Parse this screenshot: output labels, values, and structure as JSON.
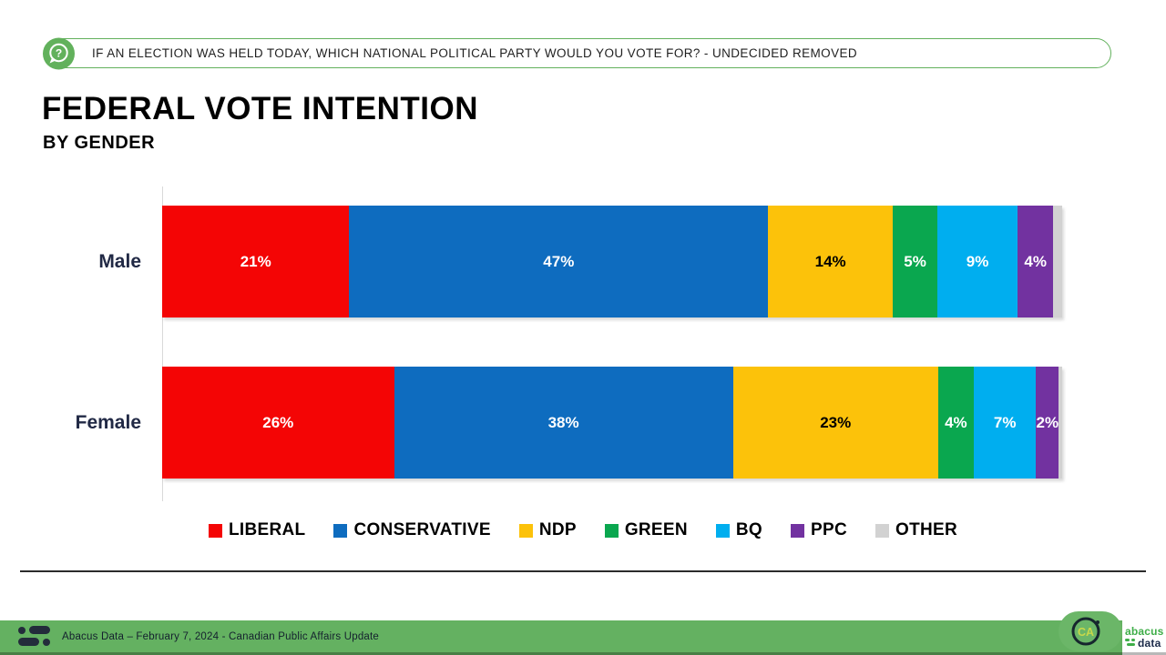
{
  "question_banner": {
    "icon": "question-speech-bubble-icon",
    "text": "IF AN ELECTION WAS HELD TODAY, WHICH NATIONAL POLITICAL PARTY WOULD YOU VOTE FOR? - UNDECIDED REMOVED",
    "border_color": "#62b15c"
  },
  "title": "FEDERAL VOTE INTENTION",
  "subtitle": "BY GENDER",
  "chart_data": {
    "type": "bar",
    "orientation": "horizontal-stacked",
    "categories": [
      "Male",
      "Female"
    ],
    "series": [
      {
        "name": "LIBERAL",
        "color": "#F40505",
        "label_color": "#FFFFFF",
        "values": [
          21,
          26
        ]
      },
      {
        "name": "CONSERVATIVE",
        "color": "#0E6CBF",
        "label_color": "#FFFFFF",
        "values": [
          47,
          38
        ]
      },
      {
        "name": "NDP",
        "color": "#FCC20A",
        "label_color": "#000000",
        "values": [
          14,
          23
        ]
      },
      {
        "name": "GREEN",
        "color": "#0AA74F",
        "label_color": "#FFFFFF",
        "values": [
          5,
          4
        ]
      },
      {
        "name": "BQ",
        "color": "#00AEEF",
        "label_color": "#FFFFFF",
        "values": [
          9,
          7
        ]
      },
      {
        "name": "PPC",
        "color": "#7232A0",
        "label_color": "#FFFFFF",
        "values": [
          4,
          2
        ]
      },
      {
        "name": "OTHER",
        "color": "#D2D2D2",
        "label_color": "#000000",
        "values": [
          1,
          0.4
        ],
        "show_labels": false
      }
    ],
    "value_suffix": "%",
    "xlim": [
      0,
      100
    ],
    "grid": false,
    "legend_position": "bottom"
  },
  "footer": {
    "left_icon": "abacus-brandmark-icon",
    "text": "Abacus Data – February 7, 2024 - Canadian Public Affairs Update",
    "ca_badge": "CA",
    "logo_line1": "abacus",
    "logo_line2": "data",
    "bar_color": "#64b161"
  }
}
